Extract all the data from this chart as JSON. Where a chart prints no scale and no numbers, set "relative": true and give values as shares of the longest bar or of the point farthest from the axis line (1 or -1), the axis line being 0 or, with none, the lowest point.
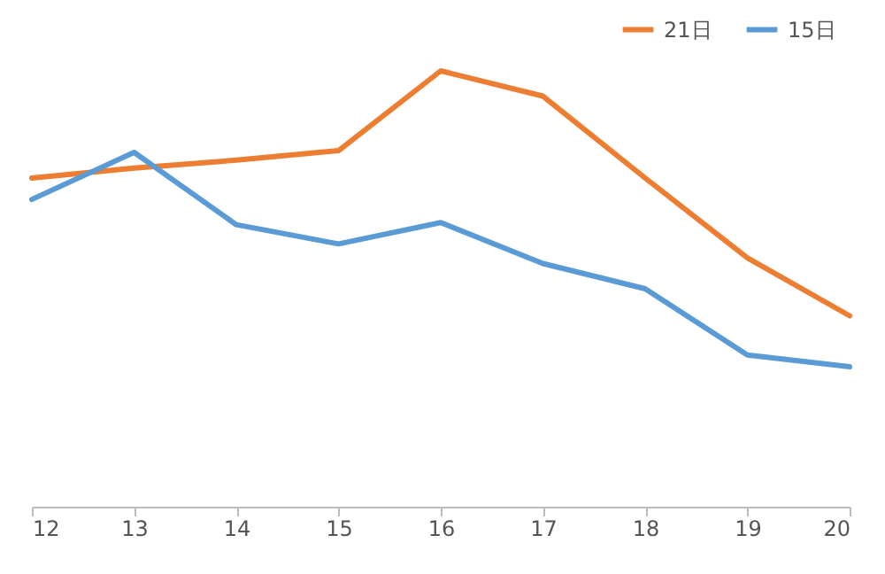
{
  "chart_data": {
    "type": "line",
    "relative": true,
    "categories": [
      "12",
      "13",
      "14",
      "15",
      "16",
      "17",
      "18",
      "19",
      "20"
    ],
    "legend": "top right",
    "tick_labels": "x",
    "series": [
      {
        "name": "21日",
        "color": "#ed7d31",
        "values": [
          0.754,
          0.777,
          0.795,
          0.817,
          1,
          0.942,
          0.754,
          0.571,
          0.438
        ]
      },
      {
        "name": "15日",
        "color": "#5b9bd5",
        "values": [
          0.705,
          0.813,
          0.647,
          0.603,
          0.652,
          0.558,
          0.5,
          0.348,
          0.321
        ]
      }
    ]
  }
}
